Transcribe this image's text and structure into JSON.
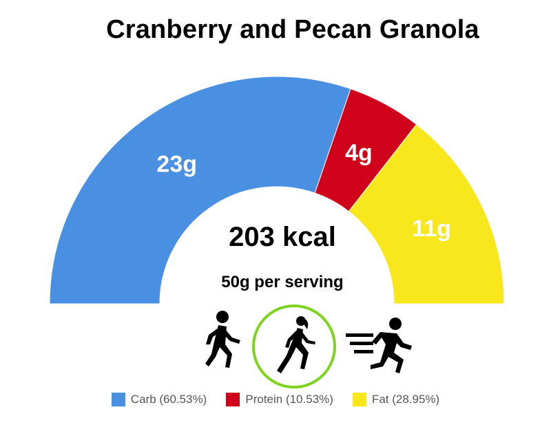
{
  "title": "Cranberry and Pecan Granola",
  "center": {
    "kcal": "203 kcal",
    "serving": "50g per serving"
  },
  "activities": [
    {
      "icon": "walking-person-icon",
      "highlighted": false
    },
    {
      "icon": "running-woman-icon",
      "highlighted": true
    },
    {
      "icon": "sprinting-person-icon",
      "highlighted": false
    }
  ],
  "chart_data": {
    "type": "pie",
    "shape": "half-donut",
    "categories": [
      "Carb",
      "Protein",
      "Fat"
    ],
    "values": [
      60.53,
      10.53,
      28.95
    ],
    "grams": [
      "23g",
      "4g",
      "11g"
    ],
    "colors": [
      "#4a90e2",
      "#d0021b",
      "#f8e71c"
    ],
    "legend": [
      "Carb (60.53%)",
      "Protein (10.53%)",
      "Fat (28.95%)"
    ],
    "legend_position": "bottom"
  }
}
